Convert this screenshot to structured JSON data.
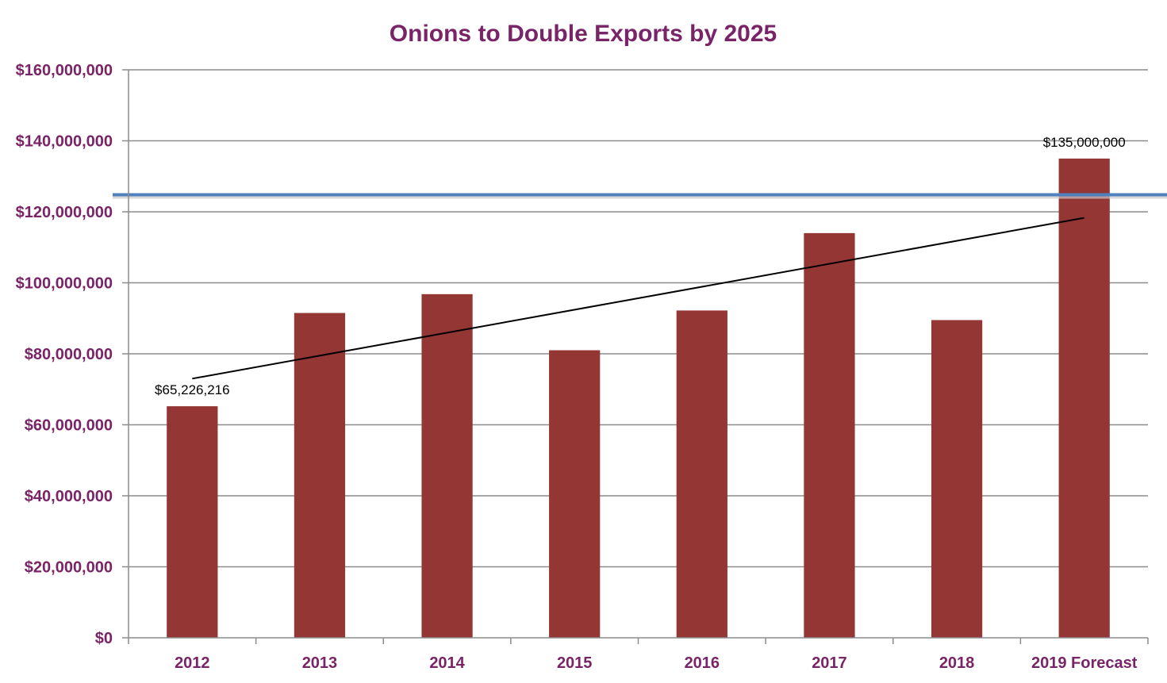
{
  "chart_data": {
    "type": "bar",
    "title": "Onions to Double Exports by 2025",
    "xlabel": "",
    "ylabel": "",
    "categories": [
      "2012",
      "2013",
      "2014",
      "2015",
      "2016",
      "2017",
      "2018",
      "2019 Forecast"
    ],
    "values": [
      65226216,
      91500000,
      96800000,
      81000000,
      92200000,
      114000000,
      89500000,
      135000000
    ],
    "ylim": [
      0,
      160000000
    ],
    "yticks": [
      0,
      20000000,
      40000000,
      60000000,
      80000000,
      100000000,
      120000000,
      140000000,
      160000000
    ],
    "ytick_labels": [
      "$0",
      "$20,000,000",
      "$40,000,000",
      "$60,000,000",
      "$80,000,000",
      "$100,000,000",
      "$120,000,000",
      "$140,000,000",
      "$160,000,000"
    ],
    "data_labels": [
      {
        "index": 0,
        "text": "$65,226,216"
      },
      {
        "index": 7,
        "text": "$135,000,000"
      }
    ],
    "trendline": {
      "type": "linear",
      "start": 73000000,
      "end": 118300000
    },
    "reference_line": {
      "value": 124800000,
      "color": "#4f81bd"
    },
    "grid": true,
    "legend": "none",
    "colors": {
      "bars": "#943634",
      "title": "#7a2468",
      "ticks": "#7a2468",
      "grid": "#8c8c8c",
      "trend": "#000000"
    }
  }
}
